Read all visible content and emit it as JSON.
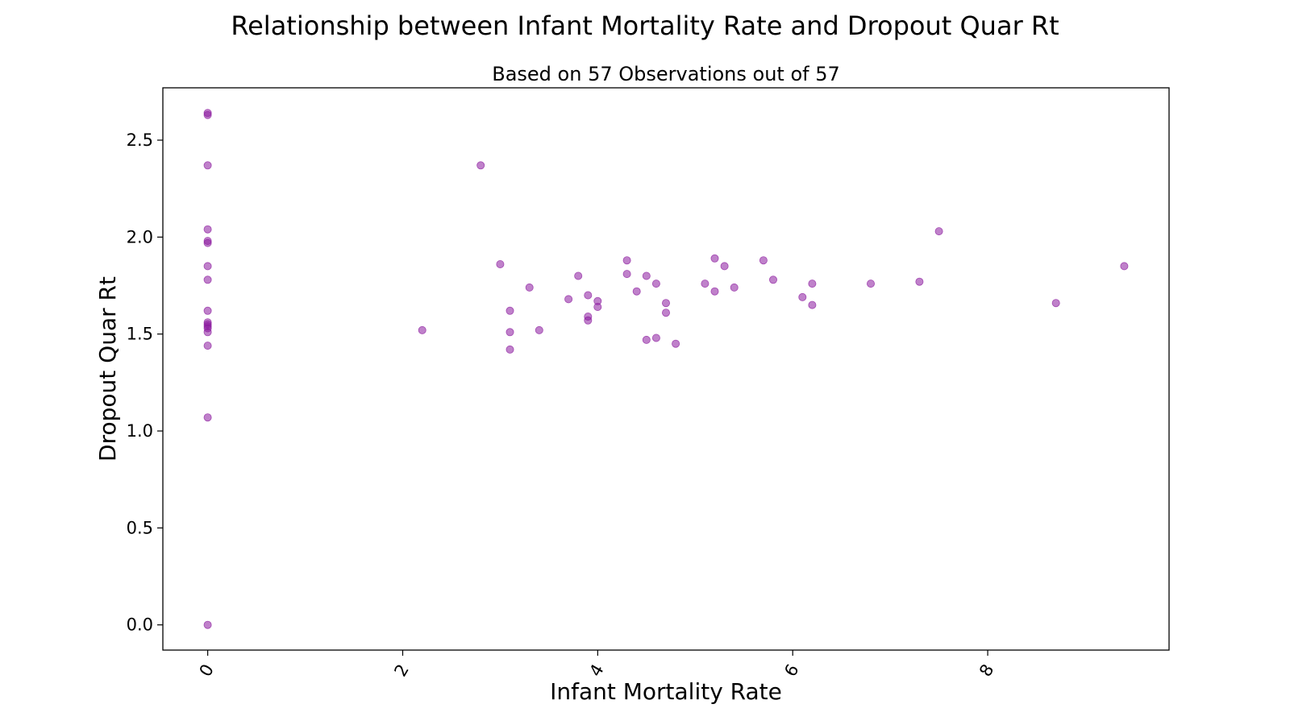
{
  "chart_data": {
    "type": "scatter",
    "title": "Relationship between Infant Mortality Rate and Dropout Quar Rt",
    "subtitle": "Based on 57 Observations out of 57",
    "xlabel": "Infant Mortality Rate",
    "ylabel": "Dropout Quar Rt",
    "xlim": [
      -0.46,
      9.86
    ],
    "ylim": [
      -0.13,
      2.77
    ],
    "xticks": [
      0,
      2,
      4,
      6,
      8
    ],
    "xtick_labels": [
      "0",
      "2",
      "4",
      "6",
      "8"
    ],
    "yticks": [
      0.0,
      0.5,
      1.0,
      1.5,
      2.0,
      2.5
    ],
    "ytick_labels": [
      "0.0",
      "0.5",
      "1.0",
      "1.5",
      "2.0",
      "2.5"
    ],
    "xtick_rotation": "rotated",
    "grid": false,
    "legend": "none",
    "marker_color": "#8b1a9e",
    "series": [
      {
        "points": [
          [
            0,
            2.64
          ],
          [
            0,
            2.63
          ],
          [
            0,
            2.37
          ],
          [
            0,
            2.04
          ],
          [
            0,
            1.98
          ],
          [
            0,
            1.97
          ],
          [
            0,
            1.85
          ],
          [
            0,
            1.78
          ],
          [
            0,
            1.62
          ],
          [
            0,
            1.56
          ],
          [
            0,
            1.55
          ],
          [
            0,
            1.54
          ],
          [
            0,
            1.53
          ],
          [
            0,
            1.51
          ],
          [
            0,
            1.44
          ],
          [
            0,
            1.07
          ],
          [
            0,
            0.0
          ],
          [
            2.2,
            1.52
          ],
          [
            2.8,
            2.37
          ],
          [
            3.0,
            1.86
          ],
          [
            3.1,
            1.62
          ],
          [
            3.1,
            1.51
          ],
          [
            3.1,
            1.42
          ],
          [
            3.3,
            1.74
          ],
          [
            3.4,
            1.52
          ],
          [
            3.7,
            1.68
          ],
          [
            3.8,
            1.8
          ],
          [
            3.9,
            1.7
          ],
          [
            3.9,
            1.59
          ],
          [
            3.9,
            1.57
          ],
          [
            4.0,
            1.67
          ],
          [
            4.0,
            1.64
          ],
          [
            4.3,
            1.88
          ],
          [
            4.3,
            1.81
          ],
          [
            4.4,
            1.72
          ],
          [
            4.5,
            1.8
          ],
          [
            4.5,
            1.47
          ],
          [
            4.6,
            1.76
          ],
          [
            4.6,
            1.48
          ],
          [
            4.7,
            1.66
          ],
          [
            4.7,
            1.61
          ],
          [
            4.8,
            1.45
          ],
          [
            5.1,
            1.76
          ],
          [
            5.2,
            1.89
          ],
          [
            5.2,
            1.72
          ],
          [
            5.3,
            1.85
          ],
          [
            5.4,
            1.74
          ],
          [
            5.7,
            1.88
          ],
          [
            5.8,
            1.78
          ],
          [
            6.1,
            1.69
          ],
          [
            6.2,
            1.76
          ],
          [
            6.2,
            1.65
          ],
          [
            6.8,
            1.76
          ],
          [
            7.3,
            1.77
          ],
          [
            7.5,
            2.03
          ],
          [
            8.7,
            1.66
          ],
          [
            9.4,
            1.85
          ]
        ]
      }
    ]
  }
}
